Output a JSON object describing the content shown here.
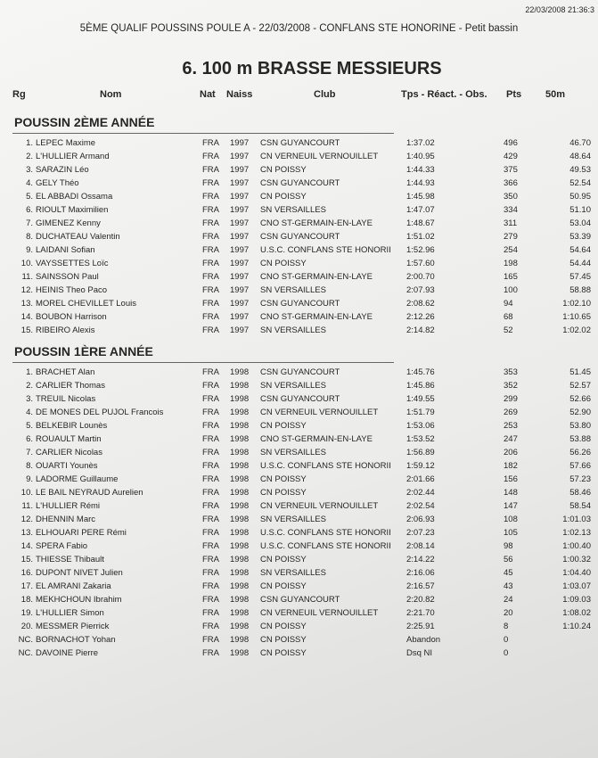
{
  "timestamp": "22/03/2008 21:36:3",
  "header": {
    "title": "5ÈME QUALIF POUSSINS POULE A - 22/03/2008 - CONFLANS STE HONORINE - Petit bassin"
  },
  "event": {
    "title": "6.  100 m BRASSE MESSIEURS"
  },
  "columns": [
    "Rg",
    "Nom",
    "Nat",
    "Naiss",
    "Club",
    "Tps - Réact. - Obs.",
    "Pts",
    "50m"
  ],
  "sections": [
    {
      "title": "POUSSIN 2ÈME ANNÉE",
      "rows": [
        [
          "1.",
          "LEPEC Maxime",
          "FRA",
          "1997",
          "CSN GUYANCOURT",
          "1:37.02",
          "496",
          "46.70"
        ],
        [
          "2.",
          "L'HULLIER Armand",
          "FRA",
          "1997",
          "CN VERNEUIL VERNOUILLET",
          "1:40.95",
          "429",
          "48.64"
        ],
        [
          "3.",
          "SARAZIN Léo",
          "FRA",
          "1997",
          "CN POISSY",
          "1:44.33",
          "375",
          "49.53"
        ],
        [
          "4.",
          "GELY Théo",
          "FRA",
          "1997",
          "CSN GUYANCOURT",
          "1:44.93",
          "366",
          "52.54"
        ],
        [
          "5.",
          "EL ABBADI Ossama",
          "FRA",
          "1997",
          "CN POISSY",
          "1:45.98",
          "350",
          "50.95"
        ],
        [
          "6.",
          "RIOULT Maximilien",
          "FRA",
          "1997",
          "SN VERSAILLES",
          "1:47.07",
          "334",
          "51.10"
        ],
        [
          "7.",
          "GIMENEZ Kenny",
          "FRA",
          "1997",
          "CNO ST-GERMAIN-EN-LAYE",
          "1:48.67",
          "311",
          "53.04"
        ],
        [
          "8.",
          "DUCHATEAU Valentin",
          "FRA",
          "1997",
          "CSN GUYANCOURT",
          "1:51.02",
          "279",
          "53.39"
        ],
        [
          "9.",
          "LAIDANI Sofian",
          "FRA",
          "1997",
          "U.S.C. CONFLANS STE HONORII",
          "1:52.96",
          "254",
          "54.64"
        ],
        [
          "10.",
          "VAYSSETTES Loïc",
          "FRA",
          "1997",
          "CN POISSY",
          "1:57.60",
          "198",
          "54.44"
        ],
        [
          "11.",
          "SAINSSON Paul",
          "FRA",
          "1997",
          "CNO ST-GERMAIN-EN-LAYE",
          "2:00.70",
          "165",
          "57.45"
        ],
        [
          "12.",
          "HEINIS Theo Paco",
          "FRA",
          "1997",
          "SN VERSAILLES",
          "2:07.93",
          "100",
          "58.88"
        ],
        [
          "13.",
          "MOREL CHEVILLET Louis",
          "FRA",
          "1997",
          "CSN GUYANCOURT",
          "2:08.62",
          "94",
          "1:02.10"
        ],
        [
          "14.",
          "BOUBON Harrison",
          "FRA",
          "1997",
          "CNO ST-GERMAIN-EN-LAYE",
          "2:12.26",
          "68",
          "1:10.65"
        ],
        [
          "15.",
          "RIBEIRO Alexis",
          "FRA",
          "1997",
          "SN VERSAILLES",
          "2:14.82",
          "52",
          "1:02.02"
        ]
      ]
    },
    {
      "title": "POUSSIN 1ÈRE ANNÉE",
      "rows": [
        [
          "1.",
          "BRACHET Alan",
          "FRA",
          "1998",
          "CSN GUYANCOURT",
          "1:45.76",
          "353",
          "51.45"
        ],
        [
          "2.",
          "CARLIER Thomas",
          "FRA",
          "1998",
          "SN VERSAILLES",
          "1:45.86",
          "352",
          "52.57"
        ],
        [
          "3.",
          "TREUIL Nicolas",
          "FRA",
          "1998",
          "CSN GUYANCOURT",
          "1:49.55",
          "299",
          "52.66"
        ],
        [
          "4.",
          "DE MONES DEL PUJOL Francois",
          "FRA",
          "1998",
          "CN VERNEUIL VERNOUILLET",
          "1:51.79",
          "269",
          "52.90"
        ],
        [
          "5.",
          "BELKEBIR Lounès",
          "FRA",
          "1998",
          "CN POISSY",
          "1:53.06",
          "253",
          "53.80"
        ],
        [
          "6.",
          "ROUAULT Martin",
          "FRA",
          "1998",
          "CNO ST-GERMAIN-EN-LAYE",
          "1:53.52",
          "247",
          "53.88"
        ],
        [
          "7.",
          "CARLIER Nicolas",
          "FRA",
          "1998",
          "SN VERSAILLES",
          "1:56.89",
          "206",
          "56.26"
        ],
        [
          "8.",
          "OUARTI Younès",
          "FRA",
          "1998",
          "U.S.C. CONFLANS STE HONORII",
          "1:59.12",
          "182",
          "57.66"
        ],
        [
          "9.",
          "LADORME Guillaume",
          "FRA",
          "1998",
          "CN POISSY",
          "2:01.66",
          "156",
          "57.23"
        ],
        [
          "10.",
          "LE BAIL NEYRAUD Aurelien",
          "FRA",
          "1998",
          "CN POISSY",
          "2:02.44",
          "148",
          "58.46"
        ],
        [
          "11.",
          "L'HULLIER Rémi",
          "FRA",
          "1998",
          "CN VERNEUIL VERNOUILLET",
          "2:02.54",
          "147",
          "58.54"
        ],
        [
          "12.",
          "DHENNIN Marc",
          "FRA",
          "1998",
          "SN VERSAILLES",
          "2:06.93",
          "108",
          "1:01.03"
        ],
        [
          "13.",
          "ELHOUARI PERE Rémi",
          "FRA",
          "1998",
          "U.S.C. CONFLANS STE HONORII",
          "2:07.23",
          "105",
          "1:02.13"
        ],
        [
          "14.",
          "SPERA Fabio",
          "FRA",
          "1998",
          "U.S.C. CONFLANS STE HONORII",
          "2:08.14",
          "98",
          "1:00.40"
        ],
        [
          "15.",
          "THIESSE Thibault",
          "FRA",
          "1998",
          "CN POISSY",
          "2:14.22",
          "56",
          "1:00.32"
        ],
        [
          "16.",
          "DUPONT NIVET Julien",
          "FRA",
          "1998",
          "SN VERSAILLES",
          "2:16.06",
          "45",
          "1:04.40"
        ],
        [
          "17.",
          "EL AMRANI Zakaria",
          "FRA",
          "1998",
          "CN POISSY",
          "2:16.57",
          "43",
          "1:03.07"
        ],
        [
          "18.",
          "MEKHCHOUN Ibrahim",
          "FRA",
          "1998",
          "CSN GUYANCOURT",
          "2:20.82",
          "24",
          "1:09.03"
        ],
        [
          "19.",
          "L'HULLIER Simon",
          "FRA",
          "1998",
          "CN VERNEUIL VERNOUILLET",
          "2:21.70",
          "20",
          "1:08.02"
        ],
        [
          "20.",
          "MESSMER Pierrick",
          "FRA",
          "1998",
          "CN POISSY",
          "2:25.91",
          "8",
          "1:10.24"
        ],
        [
          "NC.",
          "BORNACHOT Yohan",
          "FRA",
          "1998",
          "CN POISSY",
          "Abandon",
          "0"
        ],
        [
          "NC.",
          "DAVOINE Pierre",
          "FRA",
          "1998",
          "CN POISSY",
          "Dsq NI",
          "0"
        ]
      ]
    }
  ]
}
